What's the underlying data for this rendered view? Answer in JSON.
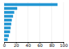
{
  "chart_data": {
    "type": "bar",
    "orientation": "horizontal",
    "categories": [
      null,
      null,
      null,
      null,
      null,
      null,
      null,
      null,
      null,
      null
    ],
    "values": [
      90,
      22,
      17,
      15,
      13,
      12,
      11,
      10,
      8,
      6
    ],
    "color": "#2196d3",
    "xlim": [
      0,
      100
    ],
    "xticks": [
      0,
      20,
      40,
      60,
      80,
      100
    ],
    "grid": true,
    "tick_labels": "x"
  }
}
